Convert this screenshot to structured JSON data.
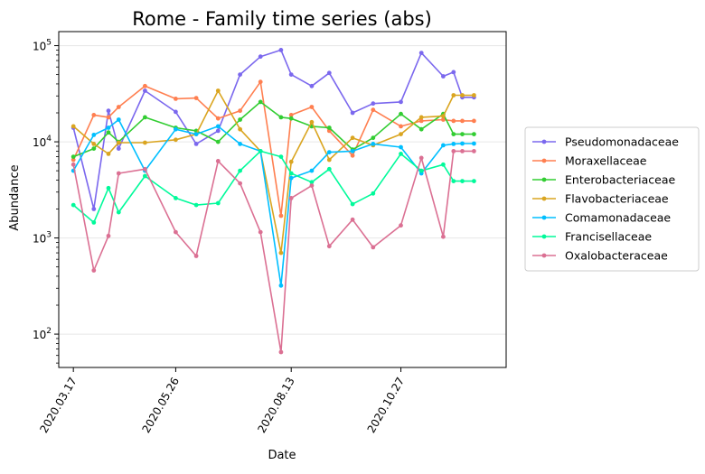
{
  "chart_data": {
    "type": "line",
    "title": "Rome - Family time series (abs)",
    "xlabel": "Date",
    "ylabel": "Abundance",
    "yscale": "log",
    "ylim": [
      45,
      140000
    ],
    "y_ticks": [
      {
        "value": 100,
        "base": "10",
        "exp": "2"
      },
      {
        "value": 1000,
        "base": "10",
        "exp": "3"
      },
      {
        "value": 10000,
        "base": "10",
        "exp": "4"
      },
      {
        "value": 100000,
        "base": "10",
        "exp": "5"
      }
    ],
    "x_range": [
      "2020-03-07",
      "2021-01-07"
    ],
    "x_ticks": [
      {
        "date": "2020-03-17",
        "label": "2020.03.17"
      },
      {
        "date": "2020-05-26",
        "label": "2020.05.26"
      },
      {
        "date": "2020-08-13",
        "label": "2020.08.13"
      },
      {
        "date": "2020-10-27",
        "label": "2020.10.27"
      }
    ],
    "grid": "horizontal",
    "legend_position": "right",
    "x": [
      "2020-03-17",
      "2020-03-31",
      "2020-04-10",
      "2020-04-17",
      "2020-05-05",
      "2020-05-26",
      "2020-06-09",
      "2020-06-24",
      "2020-07-09",
      "2020-07-23",
      "2020-08-06",
      "2020-08-13",
      "2020-08-27",
      "2020-09-08",
      "2020-09-24",
      "2020-10-08",
      "2020-10-27",
      "2020-11-10",
      "2020-11-25",
      "2020-12-02",
      "2020-12-08",
      "2020-12-16"
    ],
    "series": [
      {
        "name": "Pseudomonadaceae",
        "color": "#7b68ee",
        "values": [
          14000,
          2000,
          21000,
          8500,
          34000,
          20500,
          9500,
          13000,
          50000,
          77000,
          90000,
          50000,
          38000,
          52000,
          20000,
          25000,
          26000,
          84000,
          48000,
          53000,
          29000,
          29000
        ]
      },
      {
        "name": "Moraxellaceae",
        "color": "#ff7f50",
        "values": [
          6500,
          19000,
          18000,
          23000,
          38000,
          28000,
          28500,
          17500,
          21000,
          42000,
          1700,
          19000,
          23000,
          13000,
          7200,
          21500,
          14500,
          16500,
          17000,
          16500,
          16500,
          16500
        ]
      },
      {
        "name": "Enterobacteriaceae",
        "color": "#32cd32",
        "values": [
          7000,
          8500,
          12500,
          10000,
          18000,
          14000,
          13000,
          10000,
          17000,
          26000,
          18000,
          17500,
          14500,
          14000,
          8300,
          11000,
          19500,
          13500,
          19500,
          12000,
          12000,
          12000
        ]
      },
      {
        "name": "Flavobacteriaceae",
        "color": "#daa520",
        "values": [
          14500,
          9500,
          7500,
          9800,
          9800,
          10500,
          12000,
          34000,
          13500,
          8000,
          700,
          6200,
          16000,
          6500,
          11000,
          9200,
          12000,
          18000,
          18500,
          30500,
          30500,
          30500
        ]
      },
      {
        "name": "Comamonadaceae",
        "color": "#00bfff",
        "values": [
          5000,
          11800,
          14000,
          17000,
          5000,
          13500,
          12000,
          14500,
          9500,
          8000,
          320,
          4200,
          5000,
          7800,
          8000,
          9500,
          8800,
          4700,
          9200,
          9500,
          9600,
          9600
        ]
      },
      {
        "name": "Francisellaceae",
        "color": "#00fa9a",
        "values": [
          2200,
          1450,
          3300,
          1850,
          4400,
          2600,
          2200,
          2300,
          5000,
          8000,
          7000,
          4700,
          3800,
          5200,
          2250,
          2900,
          7500,
          5000,
          5800,
          3900,
          3900,
          3900
        ]
      },
      {
        "name": "Oxalobacteraceae",
        "color": "#db7093",
        "values": [
          5800,
          460,
          1050,
          4700,
          5200,
          1150,
          650,
          6300,
          3700,
          1150,
          65,
          2600,
          3500,
          820,
          1550,
          800,
          1350,
          6800,
          1030,
          8000,
          8000,
          8000
        ]
      }
    ]
  }
}
